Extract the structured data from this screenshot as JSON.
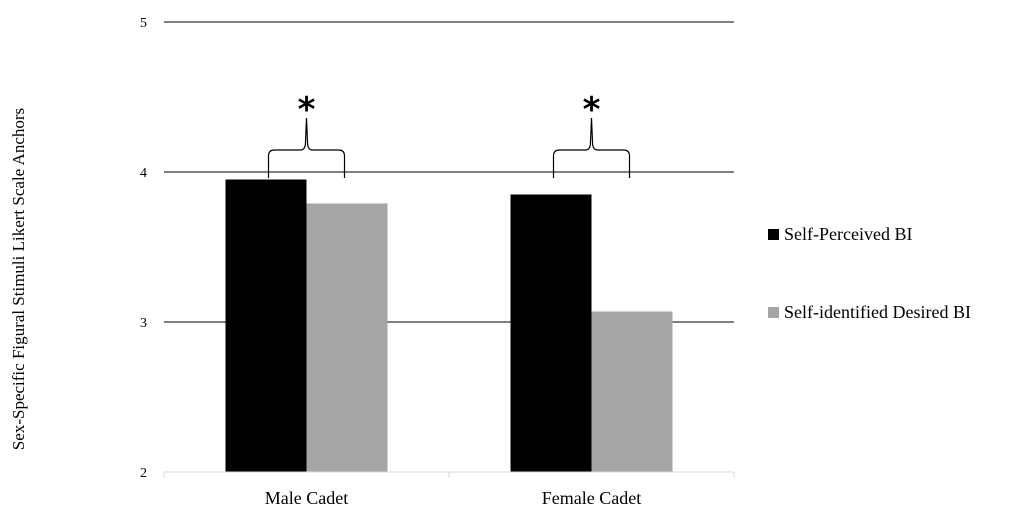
{
  "chart_data": {
    "type": "bar",
    "title": "",
    "xlabel": "",
    "ylabel": "Sex-Specific Figural Stimuli Likert Scale Anchors",
    "ylim": [
      2,
      5
    ],
    "yticks": [
      "2",
      "3",
      "4",
      "5"
    ],
    "grid": true,
    "legend_position": "right",
    "categories": [
      "Male Cadet",
      "Female Cadet"
    ],
    "series": [
      {
        "name": "Self-Perceived BI",
        "values": [
          3.95,
          3.85
        ],
        "color": "#000000"
      },
      {
        "name": "Self-identified Desired BI",
        "values": [
          3.79,
          3.07
        ],
        "color": "#a6a6a6"
      }
    ],
    "annotations": [
      {
        "category": "Male Cadet",
        "text": "*",
        "type": "significance-brace"
      },
      {
        "category": "Female Cadet",
        "text": "*",
        "type": "significance-brace"
      }
    ]
  }
}
